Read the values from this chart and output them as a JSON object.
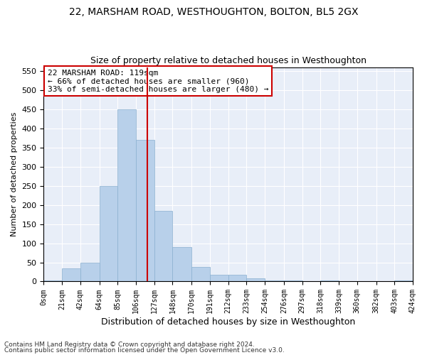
{
  "title": "22, MARSHAM ROAD, WESTHOUGHTON, BOLTON, BL5 2GX",
  "subtitle": "Size of property relative to detached houses in Westhoughton",
  "xlabel": "Distribution of detached houses by size in Westhoughton",
  "ylabel": "Number of detached properties",
  "footnote1": "Contains HM Land Registry data © Crown copyright and database right 2024.",
  "footnote2": "Contains public sector information licensed under the Open Government Licence v3.0.",
  "bin_edges": [
    0,
    21,
    42,
    64,
    85,
    106,
    127,
    148,
    170,
    191,
    212,
    233,
    254,
    276,
    297,
    318,
    339,
    360,
    382,
    403,
    424
  ],
  "bar_heights": [
    2,
    35,
    50,
    250,
    450,
    370,
    185,
    90,
    38,
    18,
    18,
    8,
    2,
    2,
    0,
    2,
    0,
    0,
    0,
    2
  ],
  "bar_color": "#b8d0ea",
  "bar_edge_color": "#8ab0d0",
  "vline_x": 119,
  "vline_color": "#cc0000",
  "annotation_text": "22 MARSHAM ROAD: 119sqm\n← 66% of detached houses are smaller (960)\n33% of semi-detached houses are larger (480) →",
  "annotation_box_color": "#ffffff",
  "annotation_box_edge": "#cc0000",
  "ylim": [
    0,
    560
  ],
  "xlim": [
    0,
    424
  ],
  "plot_bg_color": "#e8eef8",
  "tick_labels": [
    "0sqm",
    "21sqm",
    "42sqm",
    "64sqm",
    "85sqm",
    "106sqm",
    "127sqm",
    "148sqm",
    "170sqm",
    "191sqm",
    "212sqm",
    "233sqm",
    "254sqm",
    "276sqm",
    "297sqm",
    "318sqm",
    "339sqm",
    "360sqm",
    "382sqm",
    "403sqm",
    "424sqm"
  ],
  "yticks": [
    0,
    50,
    100,
    150,
    200,
    250,
    300,
    350,
    400,
    450,
    500,
    550
  ],
  "title_fontsize": 10,
  "subtitle_fontsize": 9,
  "xlabel_fontsize": 9,
  "ylabel_fontsize": 8,
  "tick_fontsize": 7,
  "ytick_fontsize": 8,
  "annotation_fontsize": 8,
  "footnote_fontsize": 6.5
}
